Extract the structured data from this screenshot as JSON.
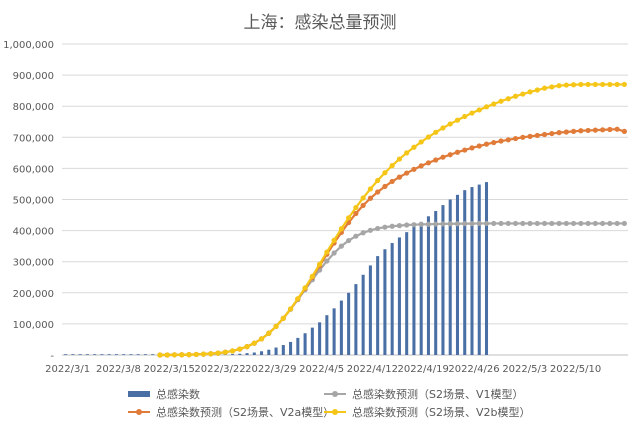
{
  "chart_data": {
    "type": "bar+line",
    "title": "上海：感染总量预测",
    "xlabel": "",
    "ylabel": "",
    "ylim": [
      0,
      1000000
    ],
    "yticks": [
      0,
      100000,
      200000,
      300000,
      400000,
      500000,
      600000,
      700000,
      800000,
      900000,
      1000000
    ],
    "ytick_labels": [
      "-",
      "100,000",
      "200,000",
      "300,000",
      "400,000",
      "500,000",
      "600,000",
      "700,000",
      "800,000",
      "900,000",
      "1,000,000"
    ],
    "start_date": "2022-03-01",
    "num_days": 78,
    "xtick_days": [
      0,
      7,
      14,
      21,
      28,
      35,
      42,
      49,
      56,
      63,
      70
    ],
    "xtick_labels": [
      "2022/3/1",
      "2022/3/8",
      "2022/3/15",
      "2022/3/22",
      "2022/3/29",
      "2022/4/5",
      "2022/4/12",
      "2022/4/19",
      "2022/4/26",
      "2022/5/3",
      "2022/5/10"
    ],
    "grid": true,
    "legend_position": "bottom",
    "series": [
      {
        "name": "总感染数",
        "kind": "bar",
        "color": "#4A6FA5",
        "start_day": 0,
        "values": [
          0,
          0,
          0,
          0,
          0,
          0,
          0,
          0,
          0,
          0,
          0,
          0,
          0,
          0,
          0,
          0,
          0,
          0,
          0,
          500,
          1000,
          1500,
          2000,
          3000,
          4000,
          6000,
          8000,
          12000,
          17000,
          24000,
          32000,
          42000,
          55000,
          70000,
          88000,
          105000,
          128000,
          150000,
          175000,
          200000,
          228000,
          258000,
          288000,
          318000,
          340000,
          360000,
          378000,
          395000,
          412000,
          428000,
          446000,
          463000,
          482000,
          500000,
          515000,
          530000,
          540000,
          548000,
          556000
        ]
      },
      {
        "name": "总感染数预测（S2场景、V1模型）",
        "kind": "line",
        "color": "#A6A6A6",
        "start_day": 13,
        "values": [
          0,
          0,
          500,
          800,
          1200,
          1800,
          2700,
          4000,
          6000,
          9000,
          13000,
          19000,
          27000,
          38000,
          52000,
          70000,
          92000,
          118000,
          147000,
          178000,
          210000,
          242000,
          273000,
          302000,
          328000,
          350000,
          368000,
          382000,
          393000,
          401000,
          407000,
          411000,
          414000,
          416000,
          418000,
          419000,
          420000,
          420500,
          421000,
          421500,
          422000,
          422000,
          422500,
          422500,
          423000,
          423000,
          423000,
          423000,
          423000,
          423000,
          423000,
          423000,
          423000,
          423000,
          423000,
          423000,
          423000,
          423000,
          423000,
          423000,
          423000,
          423000,
          423000,
          423000,
          423000
        ]
      },
      {
        "name": "总感染数预测（S2场景、V2a模型）",
        "kind": "line",
        "color": "#E07B39",
        "start_day": 13,
        "values": [
          0,
          0,
          500,
          800,
          1200,
          1800,
          2700,
          4000,
          6000,
          9000,
          13000,
          19000,
          27000,
          38000,
          52000,
          70000,
          92000,
          118000,
          148000,
          180000,
          214000,
          250000,
          287000,
          324000,
          360000,
          394000,
          426000,
          455000,
          481000,
          504000,
          524000,
          542000,
          558000,
          572000,
          585000,
          597000,
          608000,
          618000,
          627000,
          636000,
          644000,
          652000,
          659000,
          666000,
          672000,
          678000,
          683000,
          688000,
          692000,
          696000,
          700000,
          703000,
          706000,
          709000,
          712000,
          715000,
          717000,
          719000,
          721000,
          722000,
          723000,
          724000,
          725000,
          726000,
          719000
        ]
      },
      {
        "name": "总感染数预测（S2场景、V2b模型）",
        "kind": "line",
        "color": "#F5C518",
        "start_day": 13,
        "values": [
          0,
          0,
          500,
          800,
          1200,
          1800,
          2700,
          4000,
          6000,
          9000,
          13000,
          19000,
          27000,
          38000,
          52000,
          70000,
          92000,
          118000,
          148000,
          181000,
          216000,
          253000,
          292000,
          331000,
          369000,
          406000,
          441000,
          474000,
          505000,
          534000,
          561000,
          586000,
          609000,
          630000,
          650000,
          668000,
          685000,
          701000,
          716000,
          730000,
          743000,
          755000,
          767000,
          778000,
          788000,
          798000,
          807000,
          816000,
          824000,
          832000,
          839000,
          846000,
          852000,
          858000,
          862000,
          866000,
          868000,
          869000,
          870000,
          870000,
          870000,
          870000,
          870000,
          870000,
          870000
        ]
      }
    ]
  }
}
